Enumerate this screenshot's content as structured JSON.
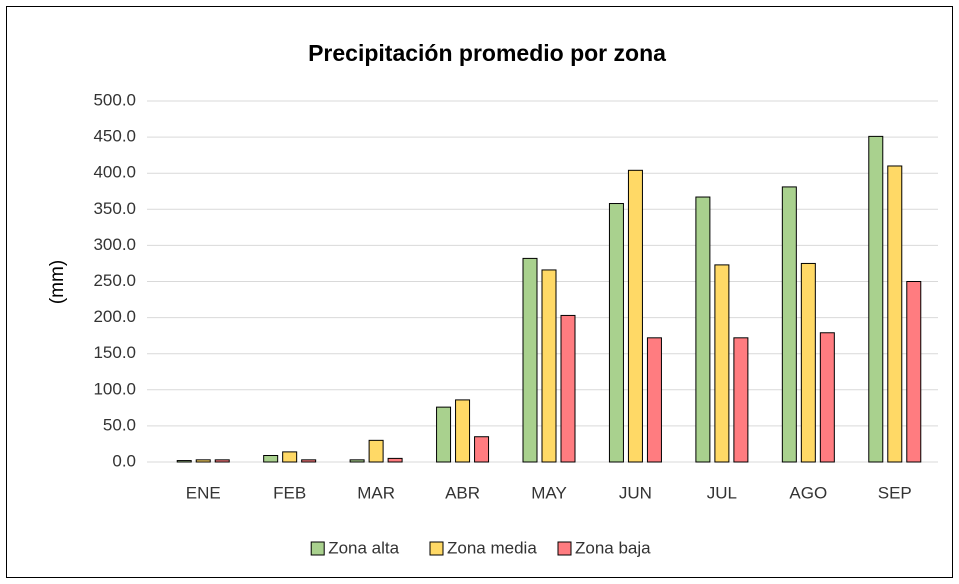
{
  "chart_data": {
    "type": "bar",
    "title": "Precipitación promedio por zona",
    "y_label": "(mm)",
    "categories": [
      "ENE",
      "FEB",
      "MAR",
      "ABR",
      "MAY",
      "JUN",
      "JUL",
      "AGO",
      "SEP"
    ],
    "series": [
      {
        "name": "Zona alta",
        "color": "#a9d18e",
        "values": [
          2,
          9,
          3,
          76,
          282,
          358,
          367,
          381,
          451
        ]
      },
      {
        "name": "Zona media",
        "color": "#ffd966",
        "values": [
          3,
          14,
          30,
          86,
          266,
          404,
          273,
          275,
          410
        ]
      },
      {
        "name": "Zona baja",
        "color": "#ff7c80",
        "values": [
          3,
          3,
          5,
          35,
          203,
          172,
          172,
          179,
          250
        ]
      }
    ],
    "ylim": [
      0,
      500
    ],
    "yticks": [
      {
        "value": 0,
        "label": "0.0"
      },
      {
        "value": 50,
        "label": "50.0"
      },
      {
        "value": 100,
        "label": "100.0"
      },
      {
        "value": 150,
        "label": "150.0"
      },
      {
        "value": 200,
        "label": "200.0"
      },
      {
        "value": 250,
        "label": "250.0"
      },
      {
        "value": 300,
        "label": "300.0"
      },
      {
        "value": 350,
        "label": "350.0"
      },
      {
        "value": 400,
        "label": "400.0"
      },
      {
        "value": 450,
        "label": "450.0"
      },
      {
        "value": 500,
        "label": "500.0"
      }
    ],
    "grid": true,
    "legend": "bottom"
  }
}
